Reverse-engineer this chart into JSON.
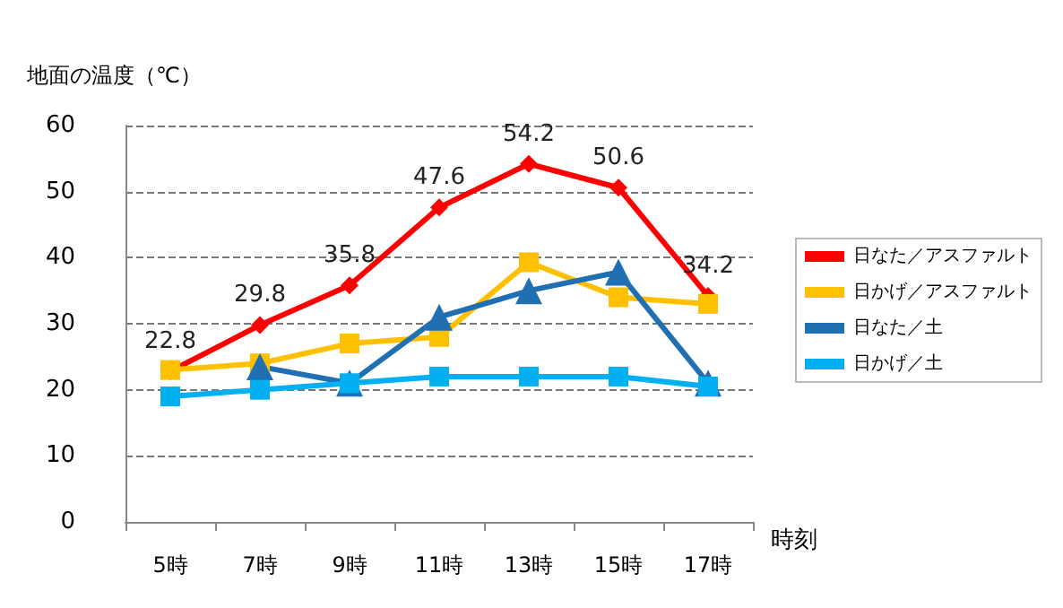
{
  "chart_data": {
    "type": "line",
    "ylabel": "地面の温度（℃）",
    "xlabel": "時刻",
    "categories": [
      "5時",
      "7時",
      "9時",
      "11時",
      "13時",
      "15時",
      "17時"
    ],
    "series": [
      {
        "name": "日なた／アスファルト",
        "color": "#ff0000",
        "marker": "diamond",
        "values": [
          22.8,
          29.8,
          35.8,
          47.6,
          54.2,
          50.6,
          34.2
        ],
        "value_labels": [
          "22.8",
          "29.8",
          "35.8",
          "47.6",
          "54.2",
          "50.6",
          "34.2"
        ]
      },
      {
        "name": "日かげ／アスファルト",
        "color": "#ffc000",
        "marker": "square",
        "values": [
          23,
          24,
          27,
          28,
          39.3,
          34,
          33
        ]
      },
      {
        "name": "日なた／土",
        "color": "#1f6fb2",
        "marker": "triangle",
        "values": [
          null,
          23.5,
          21,
          31,
          35,
          37.8,
          21
        ]
      },
      {
        "name": "日かげ／土",
        "color": "#00b0f0",
        "marker": "square",
        "values": [
          19,
          20,
          21,
          22,
          22,
          22,
          20.5
        ]
      }
    ],
    "ylim": [
      0,
      60
    ],
    "yticks": [
      0,
      10,
      20,
      30,
      40,
      50,
      60
    ],
    "grid": "y",
    "legend": "right"
  }
}
